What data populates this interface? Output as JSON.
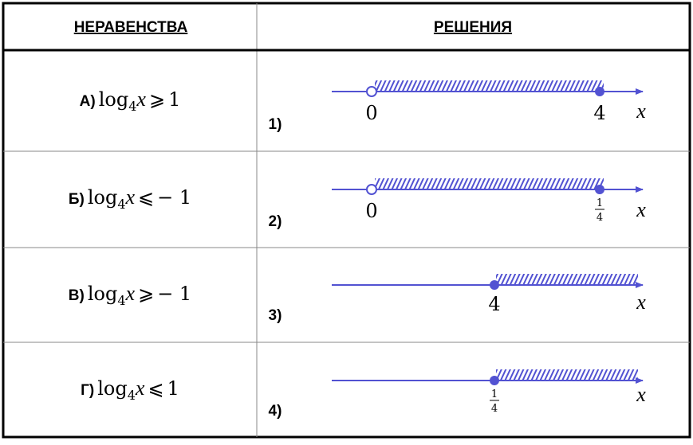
{
  "table": {
    "headers": [
      "НЕРАВЕНСТВА",
      "РЕШЕНИЯ"
    ],
    "rows": [
      {
        "inequality": {
          "label": "А)",
          "func": "log",
          "base": "4",
          "var": "x",
          "relation": "⩾",
          "rhs": "1"
        },
        "solution": {
          "label": "1)",
          "marks": [
            "0",
            "4"
          ],
          "axis": "x"
        }
      },
      {
        "inequality": {
          "label": "Б)",
          "func": "log",
          "base": "4",
          "var": "x",
          "relation": "⩽",
          "rhs": "− 1"
        },
        "solution": {
          "label": "2)",
          "marks": [
            "0",
            {
              "numerator": "1",
              "denominator": "4"
            }
          ],
          "axis": "x"
        }
      },
      {
        "inequality": {
          "label": "В)",
          "func": "log",
          "base": "4",
          "var": "x",
          "relation": "⩾",
          "rhs": "− 1"
        },
        "solution": {
          "label": "3)",
          "marks": [
            "4"
          ],
          "axis": "x"
        }
      },
      {
        "inequality": {
          "label": "Г)",
          "func": "log",
          "base": "4",
          "var": "x",
          "relation": "⩽",
          "rhs": "1"
        },
        "solution": {
          "label": "4)",
          "marks": [
            {
              "numerator": "1",
              "denominator": "4"
            }
          ],
          "axis": "x"
        }
      }
    ]
  }
}
